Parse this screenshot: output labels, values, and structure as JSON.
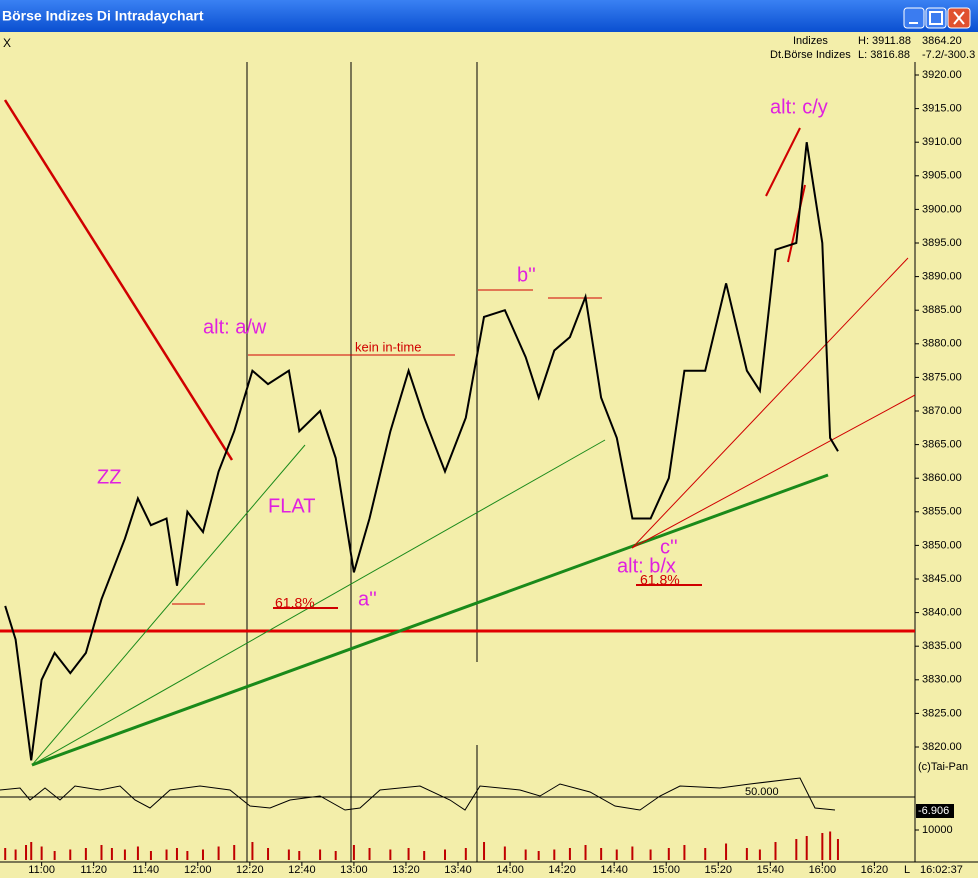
{
  "window": {
    "title": "Börse Indizes Di Intradaychart",
    "close_label": "X"
  },
  "header": {
    "index_label": "Indizes",
    "high": "H: 3911.88",
    "exchange": "Dt.Börse Indizes",
    "low": "L: 3816.88",
    "last": "3864.20",
    "change": "-7.2/-300.3"
  },
  "chart_data": {
    "type": "line",
    "color": "#000000",
    "x": [
      "10:46",
      "10:50",
      "10:54",
      "10:56",
      "11:00",
      "11:05",
      "11:11",
      "11:17",
      "11:23",
      "11:27",
      "11:32",
      "11:37",
      "11:42",
      "11:48",
      "11:52",
      "11:56",
      "12:02",
      "12:08",
      "12:14",
      "12:21",
      "12:27",
      "12:35",
      "12:39",
      "12:47",
      "12:53",
      "13:00",
      "13:06",
      "13:14",
      "13:21",
      "13:27",
      "13:35",
      "13:43",
      "13:50",
      "13:58",
      "14:06",
      "14:11",
      "14:17",
      "14:23",
      "14:29",
      "14:35",
      "14:41",
      "14:47",
      "14:54",
      "15:01",
      "15:07",
      "15:15",
      "15:23",
      "15:31",
      "15:36",
      "15:42",
      "15:50",
      "15:54",
      "16:00",
      "16:03",
      "16:06"
    ],
    "values": [
      3841,
      3836,
      3824,
      3818,
      3830,
      3834,
      3831,
      3834,
      3842,
      3846,
      3851,
      3857,
      3853,
      3854,
      3844,
      3855,
      3852,
      3861,
      3867,
      3876,
      3874,
      3876,
      3867,
      3870,
      3863,
      3846,
      3854,
      3867,
      3876,
      3869,
      3861,
      3869,
      3884,
      3885,
      3878,
      3872,
      3879,
      3881,
      3887,
      3872,
      3866,
      3854,
      3854,
      3860,
      3876,
      3876,
      3889,
      3876,
      3873,
      3894,
      3895,
      3910,
      3895,
      3866,
      3864
    ],
    "volume": [
      4000,
      3500,
      5000,
      6000,
      4500,
      3000,
      3500,
      4000,
      5000,
      4000,
      3500,
      4500,
      3000,
      3500,
      4000,
      3000,
      3500,
      4500,
      5000,
      6000,
      4000,
      3500,
      3000,
      3500,
      3000,
      5000,
      4000,
      3500,
      4000,
      3000,
      3500,
      4000,
      6000,
      4500,
      3500,
      3000,
      3500,
      4000,
      5000,
      4000,
      3500,
      4500,
      3500,
      4000,
      5000,
      4000,
      5500,
      4000,
      3500,
      6000,
      7000,
      8000,
      9000,
      9500,
      7000
    ],
    "xlim": [
      "10:44",
      "16:26"
    ],
    "xticks": [
      "11:00",
      "11:20",
      "11:40",
      "12:00",
      "12:20",
      "12:40",
      "13:00",
      "13:20",
      "13:40",
      "14:00",
      "14:20",
      "14:40",
      "15:00",
      "15:20",
      "15:40",
      "16:00",
      "16:20"
    ],
    "ylim": [
      3813,
      3927
    ],
    "yticks": [
      {
        "value": 3820,
        "label": "3820.00"
      },
      {
        "value": 3825,
        "label": "3825.00"
      },
      {
        "value": 3830,
        "label": "3830.00"
      },
      {
        "value": 3835,
        "label": "3835.00"
      },
      {
        "value": 3840,
        "label": "3840.00"
      },
      {
        "value": 3845,
        "label": "3845.00"
      },
      {
        "value": 3850,
        "label": "3850.00"
      },
      {
        "value": 3855,
        "label": "3855.00"
      },
      {
        "value": 3860,
        "label": "3860.00"
      },
      {
        "value": 3865,
        "label": "3865.00"
      },
      {
        "value": 3870,
        "label": "3870.00"
      },
      {
        "value": 3875,
        "label": "3875.00"
      },
      {
        "value": 3880,
        "label": "3880.00"
      },
      {
        "value": 3885,
        "label": "3885.00"
      },
      {
        "value": 3890,
        "label": "3890.00"
      },
      {
        "value": 3895,
        "label": "3895.00"
      },
      {
        "value": 3900,
        "label": "3900.00"
      },
      {
        "value": 3905,
        "label": "3905.00"
      },
      {
        "value": 3910,
        "label": "3910.00"
      },
      {
        "value": 3915,
        "label": "3915.00"
      },
      {
        "value": 3920,
        "label": "3920.00"
      }
    ],
    "volume_ticks": [
      10000
    ],
    "annotations": [
      "alt: a/w",
      "kein in-time",
      "ZZ",
      "FLAT",
      "61.8%",
      "a''",
      "b''",
      "alt: c/y",
      "c''",
      "alt: b/x",
      "61.8%"
    ],
    "oscillator_level": "50.000",
    "oscillator_value": "-6.906",
    "copyright": "(c)Tai-Pan",
    "clock": "16:02:37",
    "scale_mode": "L"
  }
}
